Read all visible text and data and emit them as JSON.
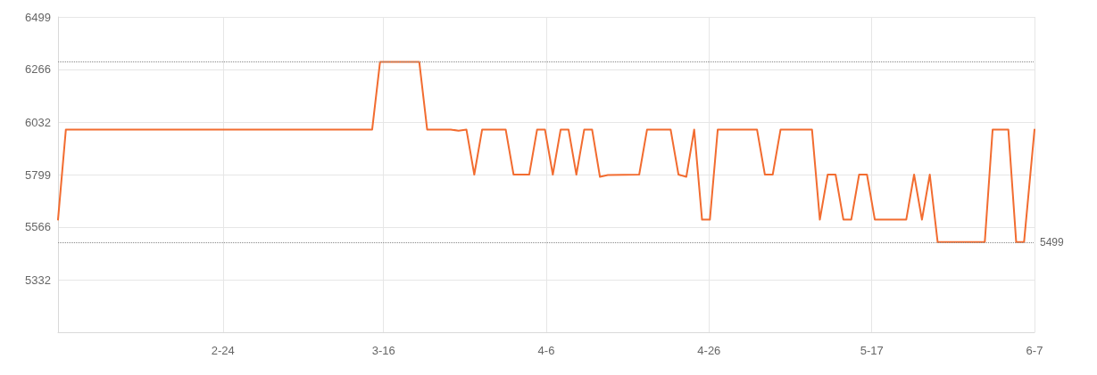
{
  "chart_data": {
    "type": "line",
    "x": [
      "--02-03",
      "--02-04",
      "--03-15",
      "--03-16",
      "--03-21",
      "--03-22",
      "--03-25",
      "--03-26",
      "--03-27",
      "--03-28",
      "--03-29",
      "--04-01",
      "--04-02",
      "--04-04",
      "--04-05",
      "--04-06",
      "--04-07",
      "--04-08",
      "--04-09",
      "--04-10",
      "--04-11",
      "--04-12",
      "--04-13",
      "--04-14",
      "--04-18",
      "--04-19",
      "--04-22",
      "--04-23",
      "--04-24",
      "--04-25",
      "--04-26",
      "--04-27",
      "--04-28",
      "--05-03",
      "--05-04",
      "--05-05",
      "--05-06",
      "--05-10",
      "--05-11",
      "--05-12",
      "--05-13",
      "--05-14",
      "--05-15",
      "--05-16",
      "--05-17",
      "--05-18",
      "--05-22",
      "--05-23",
      "--05-24",
      "--05-25",
      "--05-26",
      "--06-01",
      "--06-02",
      "--06-04",
      "--06-05",
      "--06-06",
      "--06-07T08:00"
    ],
    "series": [
      {
        "color": "#f26c30",
        "values": [
          5599,
          5999,
          5999,
          6299,
          6299,
          5999,
          5999,
          5994,
          5999,
          5799,
          5999,
          5999,
          5799,
          5799,
          5999,
          5999,
          5799,
          5999,
          5999,
          5799,
          5999,
          5999,
          5789,
          5797,
          5799,
          5999,
          5999,
          5799,
          5789,
          5999,
          5599,
          5599,
          5999,
          5999,
          5799,
          5799,
          5999,
          5999,
          5599,
          5799,
          5799,
          5599,
          5599,
          5799,
          5799,
          5599,
          5599,
          5799,
          5599,
          5799,
          5499,
          5499,
          5999,
          5999,
          5499,
          5499,
          5999
        ]
      }
    ],
    "xlim": [
      "--02-03",
      "--06-07T08:00"
    ],
    "xticks": [
      {
        "value": "--02-24",
        "label": "2-24"
      },
      {
        "value": "--03-16T10:40",
        "label": "3-16"
      },
      {
        "value": "--04-06T04:00",
        "label": "4-6"
      },
      {
        "value": "--04-26T21:20",
        "label": "4-26"
      },
      {
        "value": "--05-17T14:40",
        "label": "5-17"
      },
      {
        "value": "--06-07T08:00",
        "label": "6-7"
      }
    ],
    "ylim": [
      5099,
      6499
    ],
    "yticks": [
      {
        "value": 5332.33,
        "label": "5332"
      },
      {
        "value": 5565.67,
        "label": "5566"
      },
      5799,
      {
        "value": 6032.33,
        "label": "6032"
      },
      {
        "value": 6265.67,
        "label": "6266"
      },
      6499
    ],
    "grid": true,
    "marker": "none",
    "line_style": "solid",
    "ref_lines": [
      {
        "axis": "y",
        "value": 6299,
        "color": "#888888",
        "line_style": "dotted"
      },
      {
        "axis": "y",
        "value": 5499,
        "label": "5499",
        "color": "#888888",
        "line_style": "dotted"
      }
    ]
  }
}
